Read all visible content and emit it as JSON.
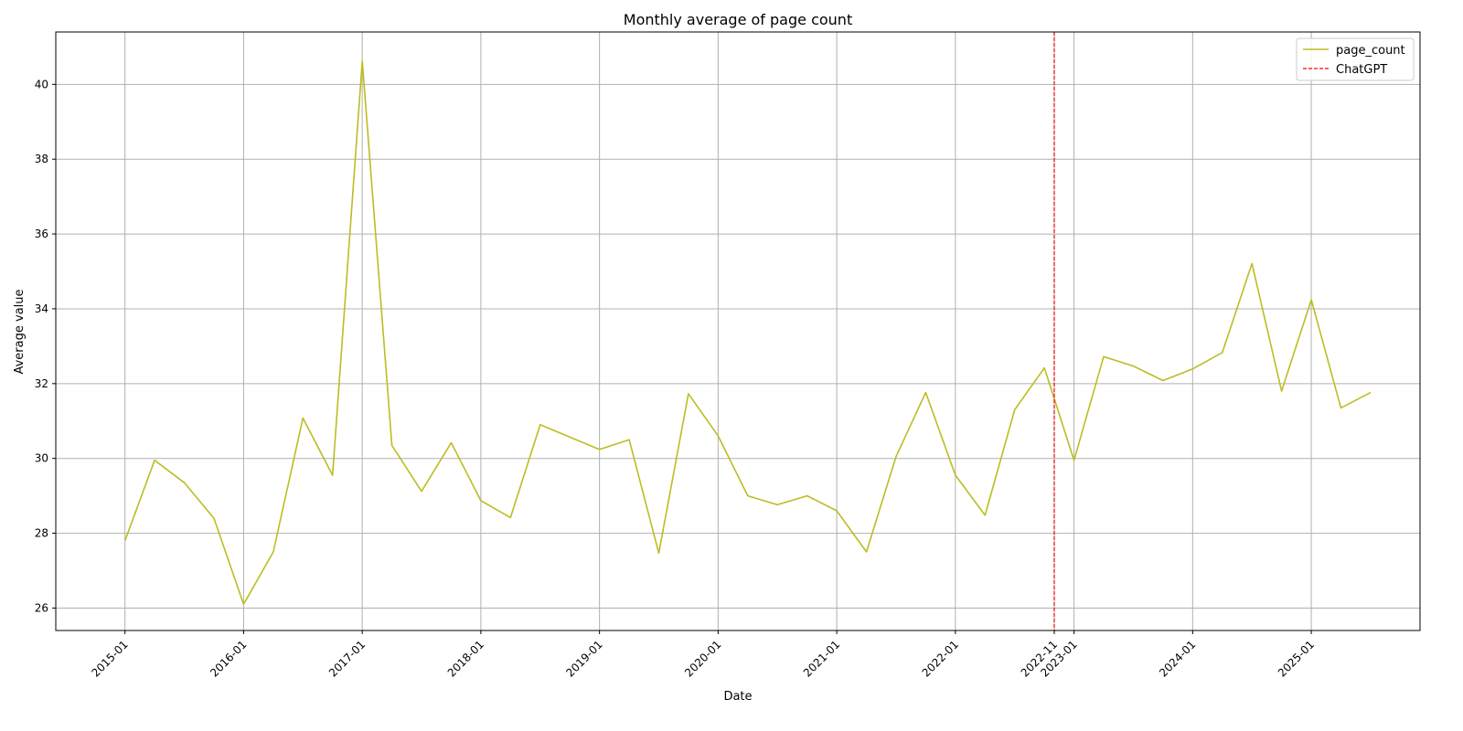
{
  "chart_data": {
    "type": "line",
    "title": "Monthly average of page count",
    "xlabel": "Date",
    "ylabel": "Average value",
    "xlim": [
      "2014-06",
      "2025-12"
    ],
    "ylim": [
      25.4,
      41.4
    ],
    "grid": true,
    "legend_position": "top-right",
    "x_ticks": [
      "2015-01",
      "2016-01",
      "2017-01",
      "2018-01",
      "2019-01",
      "2020-01",
      "2021-01",
      "2022-01",
      "2022-11",
      "2023-01",
      "2024-01",
      "2025-01"
    ],
    "y_ticks": [
      26,
      28,
      30,
      32,
      34,
      36,
      38,
      40
    ],
    "series": [
      {
        "name": "page_count",
        "color": "#bcbd22",
        "style": "solid",
        "x": [
          "2015-01",
          "2015-04",
          "2015-07",
          "2015-10",
          "2016-01",
          "2016-04",
          "2016-07",
          "2016-10",
          "2017-01",
          "2017-04",
          "2017-07",
          "2017-10",
          "2018-01",
          "2018-04",
          "2018-07",
          "2018-10",
          "2019-01",
          "2019-04",
          "2019-07",
          "2019-10",
          "2020-01",
          "2020-04",
          "2020-07",
          "2020-10",
          "2021-01",
          "2021-04",
          "2021-07",
          "2021-10",
          "2022-01",
          "2022-04",
          "2022-07",
          "2022-10",
          "2023-01",
          "2023-04",
          "2023-07",
          "2023-10",
          "2024-01",
          "2024-04",
          "2024-07",
          "2024-10",
          "2025-01",
          "2025-04",
          "2025-07"
        ],
        "y": [
          27.8,
          29.95,
          29.35,
          28.4,
          26.1,
          27.5,
          31.08,
          29.55,
          40.62,
          30.35,
          29.12,
          30.42,
          28.87,
          28.42,
          30.9,
          30.57,
          30.24,
          30.5,
          27.47,
          31.73,
          30.6,
          29.0,
          28.76,
          29.0,
          28.6,
          27.5,
          30.05,
          31.76,
          29.55,
          28.48,
          31.3,
          32.42,
          29.95,
          32.72,
          32.47,
          32.08,
          32.39,
          32.83,
          35.21,
          31.8,
          34.24,
          31.35,
          31.76
        ]
      }
    ],
    "vlines": [
      {
        "name": "ChatGPT",
        "x": "2022-11",
        "color": "#ff0000",
        "style": "dashed"
      }
    ]
  }
}
